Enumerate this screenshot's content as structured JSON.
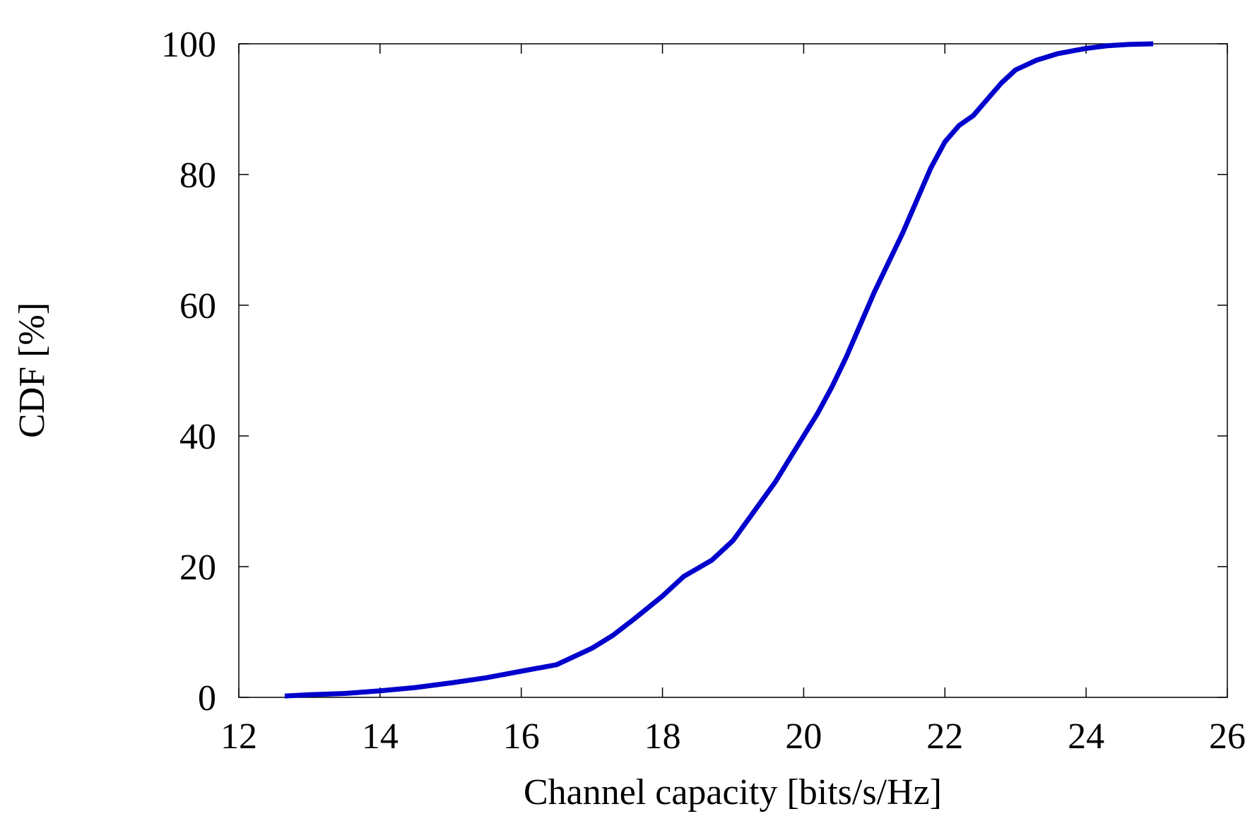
{
  "chart_data": {
    "type": "line",
    "title": "",
    "xlabel": "Channel capacity [bits/s/Hz]",
    "ylabel": "CDF [%]",
    "xlim": [
      12,
      26
    ],
    "ylim": [
      0,
      100
    ],
    "xticks": [
      "12",
      "14",
      "16",
      "18",
      "20",
      "22",
      "24",
      "26"
    ],
    "yticks": [
      "0",
      "20",
      "40",
      "60",
      "80",
      "100"
    ],
    "grid": false,
    "legend": "none",
    "series": [
      {
        "color": "#0000cc",
        "x": [
          12.65,
          13.0,
          13.5,
          14.0,
          14.5,
          15.0,
          15.5,
          16.0,
          16.5,
          17.0,
          17.3,
          17.6,
          18.0,
          18.3,
          18.7,
          19.0,
          19.3,
          19.6,
          19.8,
          20.0,
          20.2,
          20.4,
          20.6,
          20.8,
          21.0,
          21.2,
          21.4,
          21.6,
          21.8,
          22.0,
          22.2,
          22.4,
          22.6,
          22.8,
          23.0,
          23.3,
          23.6,
          24.0,
          24.3,
          24.6,
          24.95
        ],
        "y": [
          0.2,
          0.4,
          0.6,
          1.0,
          1.5,
          2.2,
          3.0,
          4.0,
          5.0,
          7.5,
          9.5,
          12.0,
          15.5,
          18.5,
          21.0,
          24.0,
          28.5,
          33.0,
          36.5,
          40.0,
          43.5,
          47.5,
          52.0,
          57.0,
          62.0,
          66.5,
          71.0,
          76.0,
          81.0,
          85.0,
          87.5,
          89.0,
          91.5,
          94.0,
          96.0,
          97.5,
          98.5,
          99.3,
          99.7,
          99.9,
          100.0
        ]
      }
    ]
  }
}
